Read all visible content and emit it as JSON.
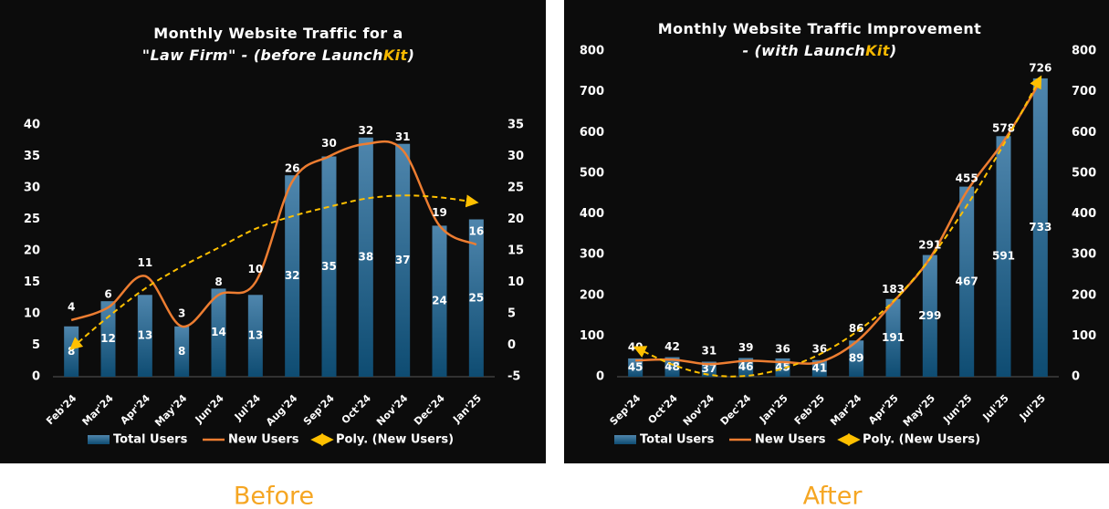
{
  "chart_data": [
    {
      "type": "bar",
      "title": [
        [
          {
            "text": "Monthly Website Traffic for a"
          }
        ],
        [
          {
            "text": "\"Law Firm\" - (before Launch"
          },
          {
            "text": "Kit",
            "color": "#f5b800"
          },
          {
            "text": ")"
          }
        ]
      ],
      "categories": [
        "Feb'24",
        "Mar'24",
        "Apr'24",
        "May'24",
        "Jun'24",
        "Jul'24",
        "Aug'24",
        "Sep'24",
        "Oct'24",
        "Nov'24",
        "Dec'24",
        "Jan'25"
      ],
      "series": [
        {
          "name": "Total Users",
          "color": "#2a6a92",
          "values": [
            8,
            12,
            13,
            8,
            14,
            13,
            32,
            35,
            38,
            37,
            24,
            25
          ]
        },
        {
          "name": "New Users",
          "color": "#ed7d31",
          "axis": "y2",
          "values": [
            4,
            6,
            11,
            3,
            8,
            10,
            26,
            30,
            32,
            31,
            19,
            16
          ]
        },
        {
          "name": "Poly. (New Users)",
          "color": "#ffc000",
          "axis": "y2",
          "values": [
            -0.5,
            4.5,
            9,
            12.5,
            15.5,
            18.5,
            20.5,
            22,
            23.3,
            23.8,
            23.5,
            22.7
          ]
        }
      ],
      "ylim": [
        0,
        40
      ],
      "yticks": [
        0,
        5,
        10,
        15,
        20,
        25,
        30,
        35,
        40
      ],
      "y2lim": [
        -5,
        35
      ],
      "y2ticks": [
        -5,
        0,
        5,
        10,
        15,
        20,
        25,
        30,
        35
      ],
      "caption": "Before"
    },
    {
      "type": "bar",
      "title": [
        [
          {
            "text": "Monthly Website Traffic Improvement"
          }
        ],
        [
          {
            "text": "- (with Launch"
          },
          {
            "text": "Kit",
            "color": "#f5b800"
          },
          {
            "text": ")"
          }
        ]
      ],
      "categories": [
        "Sep'24",
        "Oct'24",
        "Nov'24",
        "Dec'24",
        "Jan'25",
        "Feb'25",
        "Mar'24",
        "Apr'25",
        "May'25",
        "Jun'25",
        "Jul'25",
        "Jul'25"
      ],
      "series": [
        {
          "name": "Total Users",
          "color": "#2a6a92",
          "values": [
            45,
            48,
            37,
            46,
            45,
            41,
            89,
            191,
            299,
            467,
            591,
            733
          ]
        },
        {
          "name": "New Users",
          "color": "#ed7d31",
          "axis": "y2",
          "values": [
            40,
            42,
            31,
            39,
            36,
            36,
            86,
            183,
            291,
            455,
            578,
            726
          ]
        },
        {
          "name": "Poly. (New Users)",
          "color": "#ffc000",
          "axis": "y2",
          "values": [
            72,
            30,
            5,
            2,
            20,
            55,
            110,
            185,
            290,
            420,
            570,
            735
          ]
        }
      ],
      "ylim": [
        0,
        800
      ],
      "yticks": [
        0,
        100,
        200,
        300,
        400,
        500,
        600,
        700,
        800
      ],
      "y2lim": [
        0,
        800
      ],
      "y2ticks": [
        0,
        100,
        200,
        300,
        400,
        500,
        600,
        700,
        800
      ],
      "caption": "After"
    }
  ]
}
